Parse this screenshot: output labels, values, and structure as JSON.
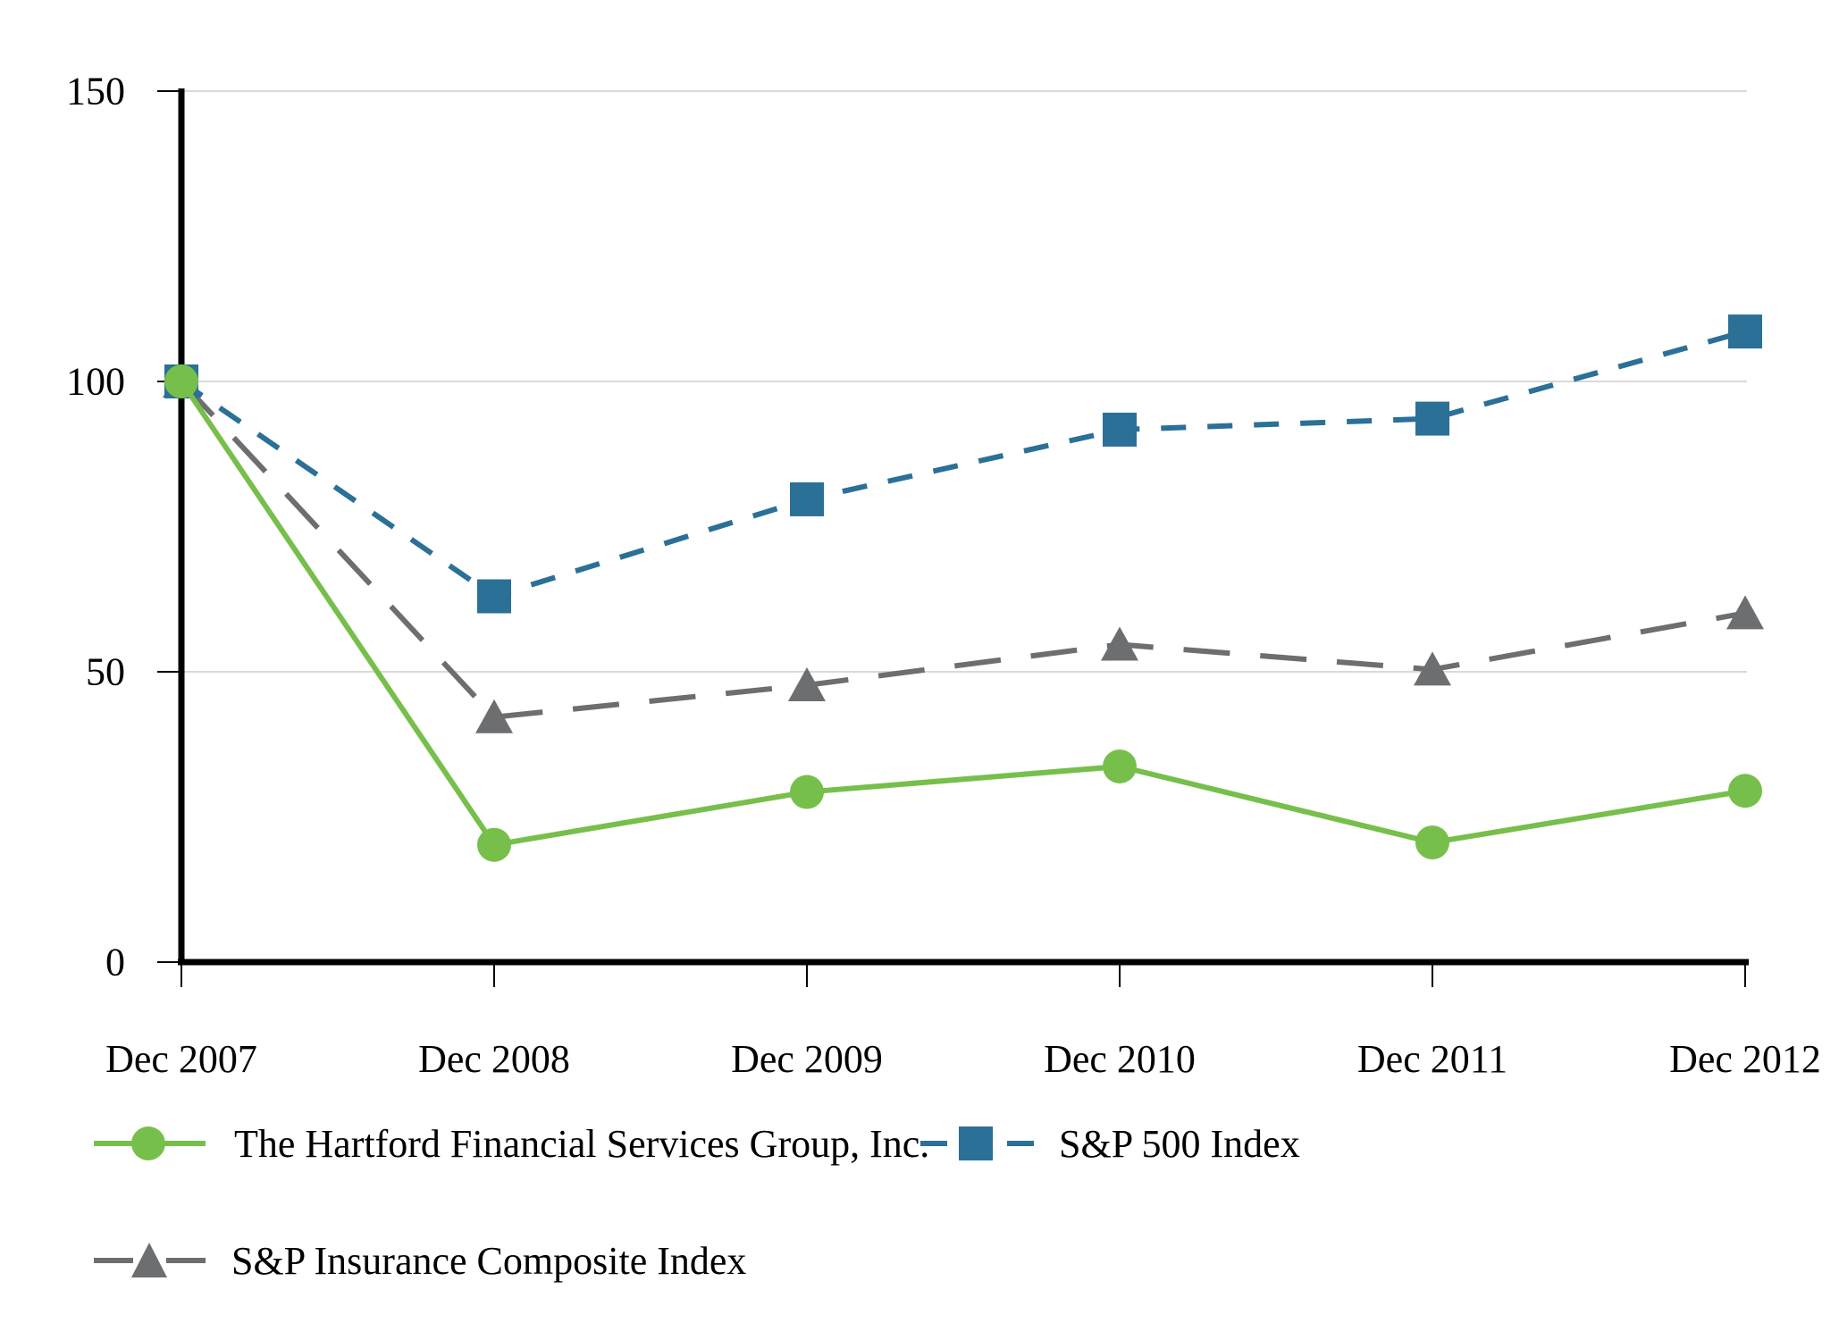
{
  "chart_data": {
    "type": "line",
    "title": "",
    "xlabel": "",
    "ylabel": "",
    "x_categories": [
      "Dec 2007",
      "Dec 2008",
      "Dec 2009",
      "Dec 2010",
      "Dec 2011",
      "Dec 2012"
    ],
    "y_ticks": [
      0,
      50,
      100,
      150
    ],
    "ylim": [
      0,
      150
    ],
    "grid": "horizontal gridlines at 50, 100, 150",
    "legend_position": "bottom-left, two rows",
    "colors": {
      "hartford_green": "#77BF4B",
      "sp500_blue": "#2B7096",
      "insurance_gray": "#6D6E70",
      "gridline_gray": "#D9D9D9",
      "axis_black": "#000000"
    },
    "series": [
      {
        "name": "The Hartford Financial Services Group, Inc.",
        "marker": "circle",
        "line_style": "solid",
        "color": "#77BF4B",
        "values": [
          100,
          20.2,
          29.3,
          33.7,
          20.6,
          29.5
        ]
      },
      {
        "name": "S&P 500 Index",
        "marker": "square",
        "line_style": "dashed",
        "color": "#2B7096",
        "values": [
          100,
          63.0,
          79.7,
          91.7,
          93.6,
          108.6
        ]
      },
      {
        "name": "S&P Insurance Composite Index",
        "marker": "triangle",
        "line_style": "long-dashed",
        "color": "#6D6E70",
        "values": [
          100,
          42.2,
          47.7,
          54.7,
          50.4,
          60.1
        ]
      }
    ]
  }
}
